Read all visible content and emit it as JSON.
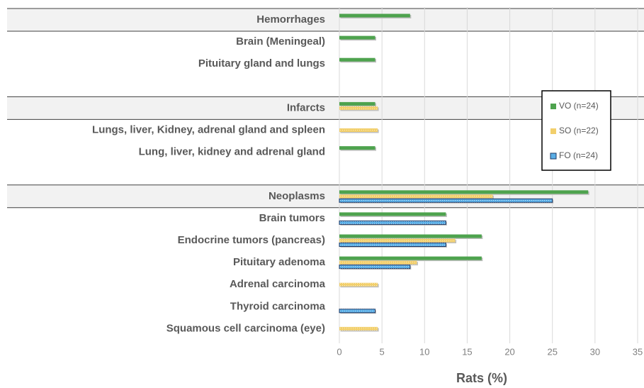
{
  "chart_data": {
    "type": "hbar",
    "x_label": "Rats (%)",
    "categories": [
      "Hemorrhages",
      "Brain (Meningeal)",
      "Pituitary gland and lungs",
      null,
      "Infarcts",
      "Lungs, liver, Kidney, adrenal gland and spleen",
      "Lung, liver, kidney and adrenal gland",
      null,
      "Neoplasms",
      "Brain tumors",
      "Endocrine tumors (pancreas)",
      "Pituitary adenoma",
      "Adrenal carcinoma",
      "Thyroid carcinoma",
      "Squamous cell carcinoma (eye)"
    ],
    "series": [
      {
        "name": "VO (n=24)",
        "color": "#4ea34e",
        "values": [
          8.3,
          4.2,
          4.2,
          null,
          4.2,
          null,
          4.2,
          null,
          29.2,
          12.5,
          16.7,
          16.7,
          null,
          null,
          null
        ]
      },
      {
        "name": "SO (n=22)",
        "color": "#f2cf6b",
        "values": [
          null,
          null,
          null,
          null,
          4.5,
          4.5,
          null,
          null,
          18,
          null,
          13.6,
          9.1,
          4.5,
          null,
          4.5
        ]
      },
      {
        "name": "FO (n=24)",
        "color": "#5aaee6",
        "values": [
          null,
          null,
          null,
          null,
          null,
          null,
          null,
          null,
          25,
          12.5,
          12.5,
          8.3,
          null,
          4.2,
          null
        ]
      }
    ],
    "xlim": [
      0,
      35
    ],
    "xticks": [
      0,
      5,
      10,
      15,
      20,
      25,
      30,
      35
    ],
    "grid": true,
    "legend": "right"
  }
}
